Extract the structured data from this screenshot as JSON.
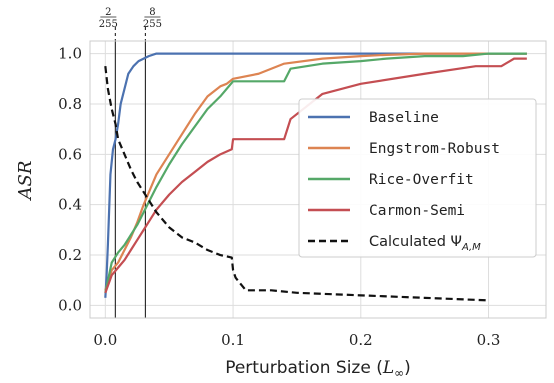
{
  "chart_data": {
    "type": "line",
    "xlabel_text": "Perturbation Size (",
    "xlabel_sym": "L",
    "xlabel_sub": "∞",
    "xlabel_close": ")",
    "ylabel": "ASR",
    "xlim": [
      -0.012,
      0.345
    ],
    "ylim": [
      -0.05,
      1.05
    ],
    "xticks": [
      0.0,
      0.1,
      0.2,
      0.3
    ],
    "xtick_labels": [
      "0.0",
      "0.1",
      "0.2",
      "0.3"
    ],
    "yticks": [
      0.0,
      0.2,
      0.4,
      0.6,
      0.8,
      1.0
    ],
    "ytick_labels": [
      "0.0",
      "0.2",
      "0.4",
      "0.6",
      "0.8",
      "1.0"
    ],
    "grid": true,
    "legend_position": "center-right",
    "vlines": [
      {
        "x": 0.00784,
        "num": "2",
        "den": "255"
      },
      {
        "x": 0.03137,
        "num": "8",
        "den": "255"
      }
    ],
    "series": [
      {
        "name": "Baseline",
        "color": "#4c72b0",
        "style": "solid",
        "x": [
          0.0,
          0.001,
          0.002,
          0.003,
          0.004,
          0.006,
          0.008,
          0.01,
          0.012,
          0.015,
          0.018,
          0.022,
          0.026,
          0.03,
          0.034,
          0.04,
          0.06,
          0.1,
          0.2,
          0.3,
          0.33
        ],
        "y": [
          0.03,
          0.12,
          0.24,
          0.38,
          0.52,
          0.62,
          0.66,
          0.72,
          0.8,
          0.86,
          0.92,
          0.95,
          0.97,
          0.98,
          0.99,
          1.0,
          1.0,
          1.0,
          1.0,
          1.0,
          1.0
        ]
      },
      {
        "name": "Engstrom-Robust",
        "color": "#dd8452",
        "style": "solid",
        "x": [
          0.0,
          0.005,
          0.01,
          0.015,
          0.02,
          0.025,
          0.03,
          0.035,
          0.04,
          0.05,
          0.06,
          0.07,
          0.08,
          0.09,
          0.095,
          0.1,
          0.12,
          0.14,
          0.17,
          0.2,
          0.22,
          0.25,
          0.28,
          0.3,
          0.33
        ],
        "y": [
          0.06,
          0.14,
          0.17,
          0.22,
          0.27,
          0.33,
          0.4,
          0.46,
          0.52,
          0.6,
          0.68,
          0.76,
          0.83,
          0.87,
          0.88,
          0.9,
          0.92,
          0.96,
          0.98,
          0.99,
          0.995,
          1.0,
          1.0,
          1.0,
          1.0
        ]
      },
      {
        "name": "Rice-Overfit",
        "color": "#55a868",
        "style": "solid",
        "x": [
          0.0,
          0.005,
          0.01,
          0.015,
          0.02,
          0.025,
          0.03,
          0.035,
          0.04,
          0.05,
          0.06,
          0.07,
          0.08,
          0.09,
          0.1,
          0.12,
          0.14,
          0.145,
          0.17,
          0.2,
          0.22,
          0.25,
          0.28,
          0.3,
          0.33
        ],
        "y": [
          0.05,
          0.17,
          0.21,
          0.24,
          0.28,
          0.32,
          0.37,
          0.42,
          0.47,
          0.56,
          0.64,
          0.71,
          0.78,
          0.83,
          0.89,
          0.89,
          0.89,
          0.94,
          0.96,
          0.97,
          0.98,
          0.99,
          0.99,
          1.0,
          1.0
        ]
      },
      {
        "name": "Carmon-Semi",
        "color": "#c44e52",
        "style": "solid",
        "x": [
          0.0,
          0.005,
          0.01,
          0.015,
          0.02,
          0.025,
          0.03,
          0.035,
          0.04,
          0.05,
          0.06,
          0.07,
          0.08,
          0.09,
          0.099,
          0.1,
          0.11,
          0.13,
          0.14,
          0.145,
          0.17,
          0.2,
          0.25,
          0.29,
          0.31,
          0.32,
          0.33
        ],
        "y": [
          0.05,
          0.12,
          0.15,
          0.18,
          0.22,
          0.26,
          0.3,
          0.34,
          0.38,
          0.44,
          0.49,
          0.53,
          0.57,
          0.6,
          0.62,
          0.66,
          0.66,
          0.66,
          0.66,
          0.74,
          0.84,
          0.88,
          0.92,
          0.95,
          0.95,
          0.98,
          0.98
        ]
      },
      {
        "name": "Calculated Ψ",
        "name_sub": "A,M",
        "color": "#111111",
        "style": "dashed",
        "x": [
          0.0,
          0.002,
          0.005,
          0.008,
          0.01,
          0.015,
          0.02,
          0.025,
          0.03,
          0.035,
          0.04,
          0.05,
          0.06,
          0.07,
          0.08,
          0.09,
          0.099,
          0.1,
          0.102,
          0.11,
          0.13,
          0.15,
          0.2,
          0.25,
          0.3
        ],
        "y": [
          0.95,
          0.86,
          0.78,
          0.72,
          0.66,
          0.6,
          0.54,
          0.49,
          0.45,
          0.41,
          0.37,
          0.31,
          0.27,
          0.25,
          0.22,
          0.2,
          0.19,
          0.14,
          0.11,
          0.06,
          0.06,
          0.05,
          0.04,
          0.03,
          0.02
        ]
      }
    ]
  }
}
